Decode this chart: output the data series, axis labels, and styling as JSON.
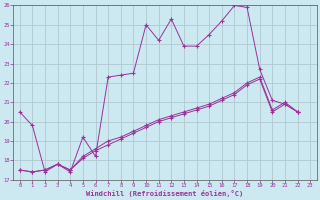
{
  "background_color": "#cce8f0",
  "grid_color": "#b0c8d0",
  "line_color": "#993399",
  "xlabel": "Windchill (Refroidissement éolien,°C)",
  "xlabel_color": "#993399",
  "xlim": [
    -0.5,
    23.5
  ],
  "ylim": [
    17,
    26
  ],
  "yticks": [
    17,
    18,
    19,
    20,
    21,
    22,
    23,
    24,
    25,
    26
  ],
  "xticks": [
    0,
    1,
    2,
    3,
    4,
    5,
    6,
    7,
    8,
    9,
    10,
    11,
    12,
    13,
    14,
    15,
    16,
    17,
    18,
    19,
    20,
    21,
    22,
    23
  ],
  "series1_x": [
    0,
    1,
    2,
    3,
    4,
    5,
    6,
    7,
    8,
    9,
    10,
    11,
    12,
    13,
    14,
    15,
    16,
    17,
    18,
    19,
    20,
    21,
    22
  ],
  "series1_y": [
    20.5,
    19.8,
    17.4,
    17.8,
    17.4,
    19.2,
    18.2,
    22.3,
    22.4,
    22.5,
    25.0,
    24.2,
    25.3,
    23.9,
    23.9,
    24.5,
    25.2,
    26.0,
    25.9,
    22.7,
    21.1,
    20.9,
    20.5
  ],
  "series2_x": [
    0,
    1,
    2,
    3,
    4,
    5,
    6,
    7,
    8,
    9,
    10,
    11,
    12,
    13,
    14,
    15,
    16,
    17,
    18,
    19,
    20,
    21,
    22
  ],
  "series2_y": [
    17.5,
    17.4,
    17.5,
    17.8,
    17.5,
    18.1,
    18.5,
    18.8,
    19.1,
    19.4,
    19.7,
    20.0,
    20.2,
    20.4,
    20.6,
    20.8,
    21.1,
    21.4,
    21.9,
    22.2,
    20.5,
    20.9,
    20.5
  ],
  "series3_x": [
    0,
    1,
    2,
    3,
    4,
    5,
    6,
    7,
    8,
    9,
    10,
    11,
    12,
    13,
    14,
    15,
    16,
    17,
    18,
    19,
    20,
    21,
    22
  ],
  "series3_y": [
    17.5,
    17.4,
    17.5,
    17.8,
    17.5,
    18.2,
    18.6,
    19.0,
    19.2,
    19.5,
    19.8,
    20.1,
    20.3,
    20.5,
    20.7,
    20.9,
    21.2,
    21.5,
    22.0,
    22.3,
    20.6,
    21.0,
    20.5
  ]
}
